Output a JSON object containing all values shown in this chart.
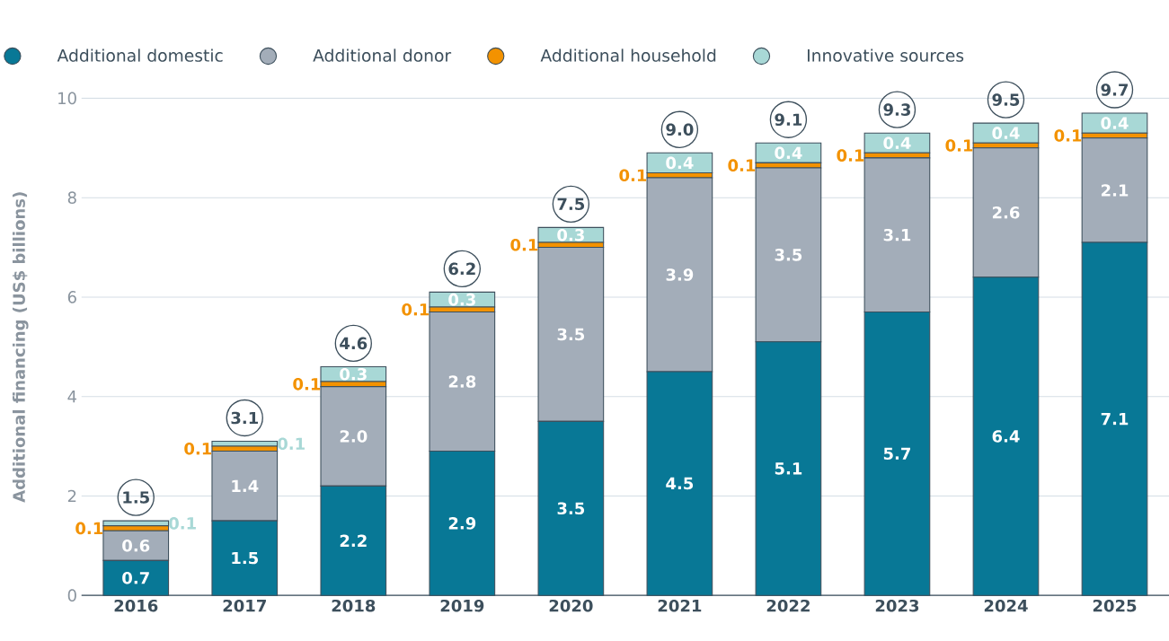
{
  "chart_data": {
    "type": "bar",
    "stacked": true,
    "ylabel": "Additional financing (US$ billions)",
    "categories": [
      "2016",
      "2017",
      "2018",
      "2019",
      "2020",
      "2021",
      "2022",
      "2023",
      "2024",
      "2025"
    ],
    "series": [
      {
        "name": "Additional domestic",
        "color": "#087896",
        "values": [
          0.7,
          1.5,
          2.2,
          2.9,
          3.5,
          4.5,
          5.1,
          5.7,
          6.4,
          7.1
        ],
        "value_labels": [
          "0.7",
          "1.5",
          "2.2",
          "2.9",
          "3.5",
          "4.5",
          "5.1",
          "5.7",
          "6.4",
          "7.1"
        ]
      },
      {
        "name": "Additional donor",
        "color": "#a3adb9",
        "values": [
          0.6,
          1.4,
          2.0,
          2.8,
          3.5,
          3.9,
          3.5,
          3.1,
          2.6,
          2.1
        ],
        "value_labels": [
          "0.6",
          "1.4",
          "2.0",
          "2.8",
          "3.5",
          "3.9",
          "3.5",
          "3.1",
          "2.6",
          "2.1"
        ]
      },
      {
        "name": "Additional household",
        "color": "#f39200",
        "values": [
          0.1,
          0.1,
          0.1,
          0.1,
          0.1,
          0.1,
          0.1,
          0.1,
          0.1,
          0.1
        ],
        "value_labels": [
          "0.1",
          "0.1",
          "0.1",
          "0.1",
          "0.1",
          "0.1",
          "0.1",
          "0.1",
          "0.1",
          "0.1"
        ]
      },
      {
        "name": "Innovative sources",
        "color": "#a8d8d6",
        "values": [
          0.1,
          0.1,
          0.3,
          0.3,
          0.3,
          0.4,
          0.4,
          0.4,
          0.4,
          0.4
        ],
        "value_labels": [
          "0.1",
          "0.1",
          "0.3",
          "0.3",
          "0.3",
          "0.4",
          "0.4",
          "0.4",
          "0.4",
          "0.4"
        ]
      }
    ],
    "totals": [
      "1.5",
      "3.1",
      "4.6",
      "6.2",
      "7.5",
      "9.0",
      "9.1",
      "9.3",
      "9.5",
      "9.7"
    ],
    "ylim": [
      0,
      10
    ],
    "yticks": [
      0,
      2,
      4,
      6,
      8,
      10
    ],
    "grid": "y",
    "legend": "top"
  }
}
